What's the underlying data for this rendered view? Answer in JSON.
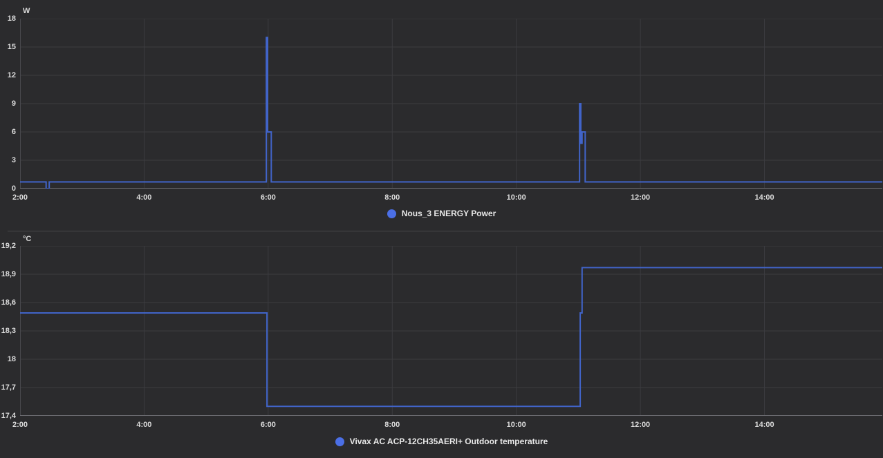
{
  "page": {
    "background": "#2b2b2d"
  },
  "colors": {
    "grid": "#3c3c40",
    "axis_x": "#6a6a70",
    "axis_y": "#48484d",
    "tick_label": "#dcdcdc",
    "legend_text": "#e8e8e8",
    "series_line": "#4164c9",
    "legend_dot": "#4b6fe6",
    "divider": "#47474b"
  },
  "chart_data": [
    {
      "type": "line",
      "style": "step",
      "title": "",
      "unit": "W",
      "legend": "Nous_3 ENERGY Power",
      "legend_position": "bottom-center",
      "grid": true,
      "xlim": [
        2.0,
        15.9
      ],
      "ylim": [
        0,
        18
      ],
      "y_ticks": [
        {
          "v": 0,
          "label": "0"
        },
        {
          "v": 3,
          "label": "3"
        },
        {
          "v": 6,
          "label": "6"
        },
        {
          "v": 9,
          "label": "9"
        },
        {
          "v": 12,
          "label": "12"
        },
        {
          "v": 15,
          "label": "15"
        },
        {
          "v": 18,
          "label": "18"
        }
      ],
      "x_ticks": [
        {
          "v": 2,
          "label": "2:00"
        },
        {
          "v": 4,
          "label": "4:00"
        },
        {
          "v": 6,
          "label": "6:00"
        },
        {
          "v": 8,
          "label": "8:00"
        },
        {
          "v": 10,
          "label": "10:00"
        },
        {
          "v": 12,
          "label": "12:00"
        },
        {
          "v": 14,
          "label": "14:00"
        }
      ],
      "points": [
        [
          2.0,
          0.7
        ],
        [
          2.42,
          0.7
        ],
        [
          2.42,
          0
        ],
        [
          2.47,
          0
        ],
        [
          2.47,
          0.7
        ],
        [
          5.97,
          0.7
        ],
        [
          5.97,
          16
        ],
        [
          5.99,
          16
        ],
        [
          5.99,
          6
        ],
        [
          6.05,
          6
        ],
        [
          6.05,
          0.7
        ],
        [
          11.02,
          0.7
        ],
        [
          11.02,
          9
        ],
        [
          11.04,
          9
        ],
        [
          11.04,
          4.8
        ],
        [
          11.06,
          4.8
        ],
        [
          11.06,
          6
        ],
        [
          11.11,
          6
        ],
        [
          11.11,
          0.7
        ],
        [
          15.9,
          0.7
        ]
      ]
    },
    {
      "type": "line",
      "style": "step",
      "title": "",
      "unit": "°C",
      "legend": "Vivax AC ACP-12CH35AERI+ Outdoor temperature",
      "legend_position": "bottom-center",
      "grid": true,
      "xlim": [
        2.0,
        15.9
      ],
      "ylim": [
        17.4,
        19.2
      ],
      "y_ticks": [
        {
          "v": 17.4,
          "label": "17,4"
        },
        {
          "v": 17.7,
          "label": "17,7"
        },
        {
          "v": 18,
          "label": "18"
        },
        {
          "v": 18.3,
          "label": "18,3"
        },
        {
          "v": 18.6,
          "label": "18,6"
        },
        {
          "v": 18.9,
          "label": "18,9"
        },
        {
          "v": 19.2,
          "label": "19,2"
        }
      ],
      "x_ticks": [
        {
          "v": 2,
          "label": "2:00"
        },
        {
          "v": 4,
          "label": "4:00"
        },
        {
          "v": 6,
          "label": "6:00"
        },
        {
          "v": 8,
          "label": "8:00"
        },
        {
          "v": 10,
          "label": "10:00"
        },
        {
          "v": 12,
          "label": "12:00"
        },
        {
          "v": 14,
          "label": "14:00"
        }
      ],
      "points": [
        [
          2.0,
          18.49
        ],
        [
          5.98,
          18.49
        ],
        [
          5.98,
          17.5
        ],
        [
          11.03,
          17.5
        ],
        [
          11.03,
          18.49
        ],
        [
          11.06,
          18.49
        ],
        [
          11.06,
          18.97
        ],
        [
          15.9,
          18.97
        ]
      ]
    }
  ]
}
